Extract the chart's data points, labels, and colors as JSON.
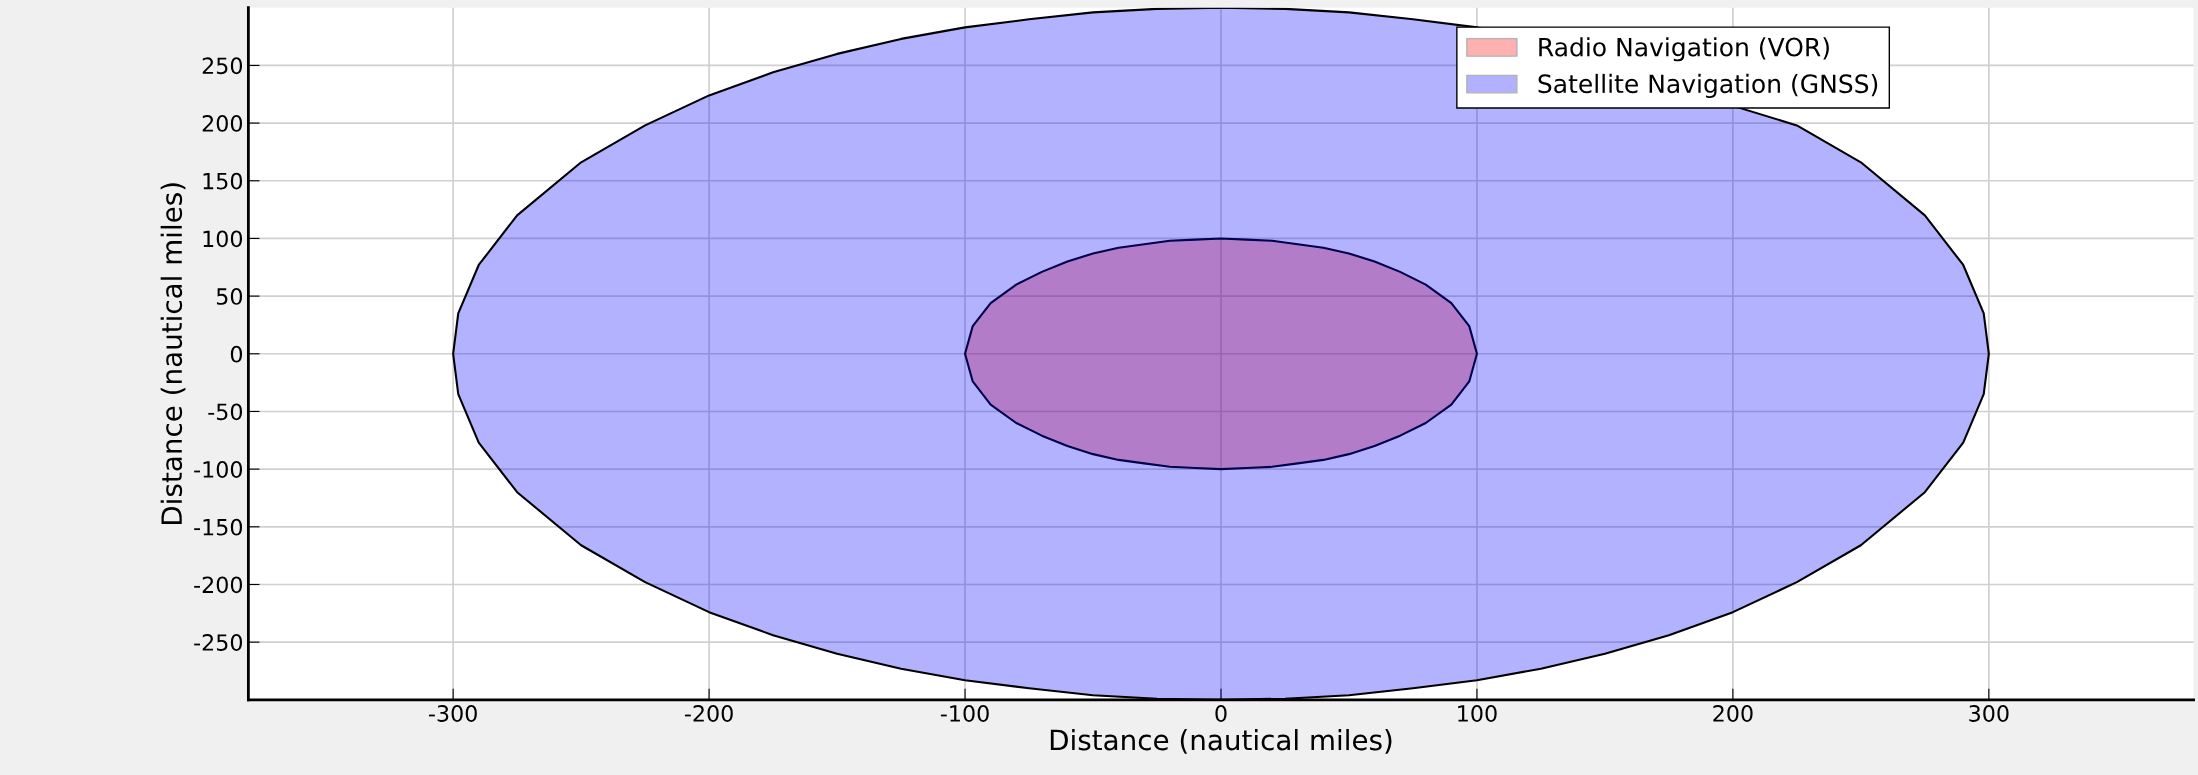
{
  "chart_data": {
    "type": "area",
    "xlabel": "Distance (nautical miles)",
    "ylabel": "Distance (nautical miles)",
    "xlim": [
      -380,
      380
    ],
    "ylim": [
      -300,
      300
    ],
    "xticks": [
      -300,
      -200,
      -100,
      0,
      100,
      200,
      300
    ],
    "yticks": [
      -250,
      -200,
      -150,
      -100,
      -50,
      0,
      50,
      100,
      150,
      200,
      250
    ],
    "grid": true,
    "legend": "top right",
    "series": [
      {
        "name": "Radio Navigation (VOR)",
        "color": "#ff0000",
        "x": [
          -100,
          -97,
          -90,
          -80,
          -70,
          -60,
          -50,
          -40,
          -30,
          -20,
          -10,
          0,
          10,
          20,
          30,
          40,
          50,
          60,
          70,
          80,
          90,
          97,
          100,
          97,
          90,
          80,
          70,
          60,
          50,
          40,
          30,
          20,
          10,
          0,
          -10,
          -20,
          -30,
          -40,
          -50,
          -60,
          -70,
          -80,
          -90,
          -97
        ],
        "values": [
          0,
          24,
          44,
          60,
          71,
          80,
          87,
          92,
          95,
          98,
          99,
          100,
          99,
          98,
          95,
          92,
          87,
          80,
          71,
          60,
          44,
          24,
          0,
          -24,
          -44,
          -60,
          -71,
          -80,
          -87,
          -92,
          -95,
          -98,
          -99,
          -100,
          -99,
          -98,
          -95,
          -92,
          -87,
          -80,
          -71,
          -60,
          -44,
          -24
        ]
      },
      {
        "name": "Satellite Navigation (GNSS)",
        "color": "#0000ff",
        "x": [
          -300,
          -298,
          -290,
          -275,
          -250,
          -225,
          -200,
          -175,
          -150,
          -125,
          -100,
          -75,
          -50,
          -25,
          0,
          25,
          50,
          75,
          100,
          125,
          150,
          175,
          200,
          225,
          250,
          275,
          290,
          298,
          300,
          298,
          290,
          275,
          250,
          225,
          200,
          175,
          150,
          125,
          100,
          75,
          50,
          25,
          0,
          -25,
          -50,
          -75,
          -100,
          -125,
          -150,
          -175,
          -200,
          -225,
          -250,
          -275,
          -290,
          -298
        ],
        "values": [
          0,
          35,
          77,
          120,
          166,
          198,
          224,
          244,
          260,
          273,
          283,
          290,
          296,
          299,
          300,
          299,
          296,
          290,
          283,
          null,
          null,
          null,
          null,
          198,
          166,
          120,
          77,
          35,
          0,
          -35,
          -77,
          -120,
          -166,
          -198,
          -224,
          -244,
          -260,
          -273,
          -283,
          -290,
          -296,
          -299,
          -300,
          -299,
          -296,
          -290,
          -283,
          -273,
          -260,
          -244,
          -224,
          -198,
          -166,
          -120,
          -77,
          -35
        ]
      }
    ]
  }
}
